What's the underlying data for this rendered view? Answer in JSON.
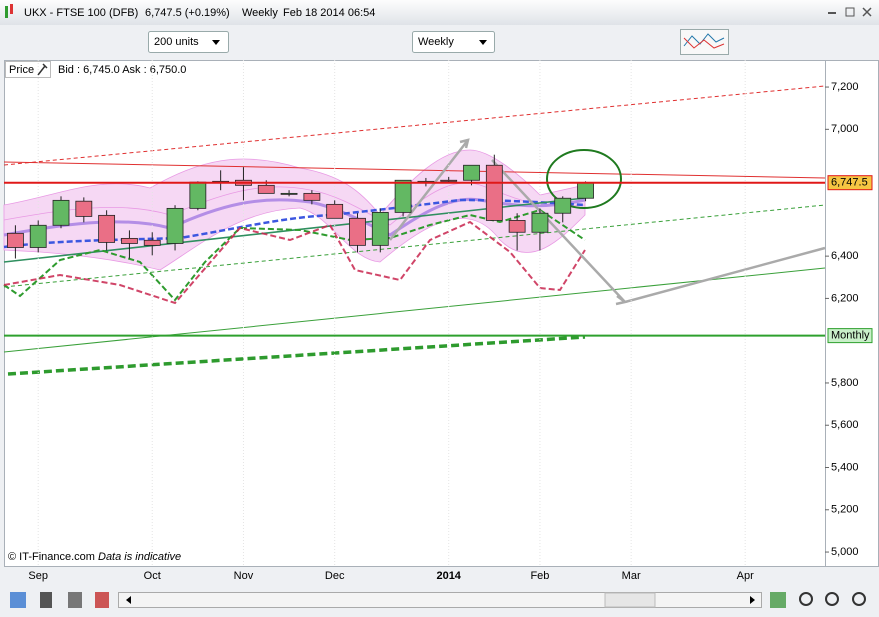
{
  "window": {
    "title": "UKX - FTSE 100 (DFB)",
    "change": "6,747.5 (+0.19%)",
    "interval": "Weekly",
    "timestamp": "Feb 18 2014 06:54"
  },
  "toolbar": {
    "size": "200 units",
    "interval": "Weekly"
  },
  "info": {
    "label": "Price",
    "quote": "Bid : 6,745.0 Ask : 6,750.0"
  },
  "footer": {
    "copyright": "© IT-Finance.com",
    "note": "Data is indicative"
  },
  "chart_data": {
    "type": "candlestick",
    "open": [
      6508,
      6441,
      6546,
      6660,
      6593,
      6484,
      6475,
      6460,
      6626,
      6754,
      6759,
      6735,
      6697,
      6697,
      6645,
      6579,
      6451,
      6607,
      6754,
      6759,
      6759,
      6830,
      6569,
      6513,
      6603,
      6674
    ],
    "high": [
      6546,
      6569,
      6683,
      6678,
      6617,
      6522,
      6513,
      6641,
      6754,
      6806,
      6821,
      6759,
      6712,
      6712,
      6664,
      6603,
      6626,
      6759,
      6770,
      6775,
      6830,
      6880,
      6603,
      6626,
      6683,
      6754
    ],
    "low": [
      6389,
      6418,
      6532,
      6560,
      6427,
      6389,
      6404,
      6427,
      6617,
      6712,
      6664,
      6697,
      6683,
      6645,
      6579,
      6418,
      6418,
      6588,
      6730,
      6745,
      6735,
      6588,
      6427,
      6427,
      6560,
      6660
    ],
    "close": [
      6441,
      6546,
      6664,
      6588,
      6465,
      6460,
      6451,
      6626,
      6750,
      6750,
      6735,
      6697,
      6697,
      6664,
      6579,
      6451,
      6607,
      6759,
      6754,
      6754,
      6830,
      6569,
      6513,
      6603,
      6674,
      6747.5
    ],
    "up_color": "#63b863",
    "down_color": "#ea6f86",
    "xlim": [
      -0.5,
      35.5
    ],
    "xticks": [
      {
        "value": 1,
        "label": "Sep"
      },
      {
        "value": 6,
        "label": "Oct"
      },
      {
        "value": 10,
        "label": "Nov"
      },
      {
        "value": 14,
        "label": "Dec"
      },
      {
        "value": 19,
        "label": "2014"
      },
      {
        "value": 23,
        "label": "Feb"
      },
      {
        "value": 27,
        "label": "Mar"
      },
      {
        "value": 32,
        "label": "Apr"
      }
    ],
    "ylim": [
      4934,
      7328
    ],
    "yticks": [
      {
        "value": 7200,
        "label": "7,200"
      },
      {
        "value": 7000,
        "label": "7,000"
      },
      {
        "value": 6400,
        "label": "6,400"
      },
      {
        "value": 6200,
        "label": "6,200"
      },
      {
        "value": 5800,
        "label": "5,800"
      },
      {
        "value": 5600,
        "label": "5,600"
      },
      {
        "value": 5400,
        "label": "5,400"
      },
      {
        "value": 5200,
        "label": "5,200"
      },
      {
        "value": 5000,
        "label": "5,000"
      }
    ],
    "price_level": {
      "value": 6747.5,
      "label": "6,747.5",
      "color": "#e01818"
    },
    "support_level": {
      "value": 6024,
      "label": "Monthly",
      "color": "#2ea02e"
    }
  }
}
